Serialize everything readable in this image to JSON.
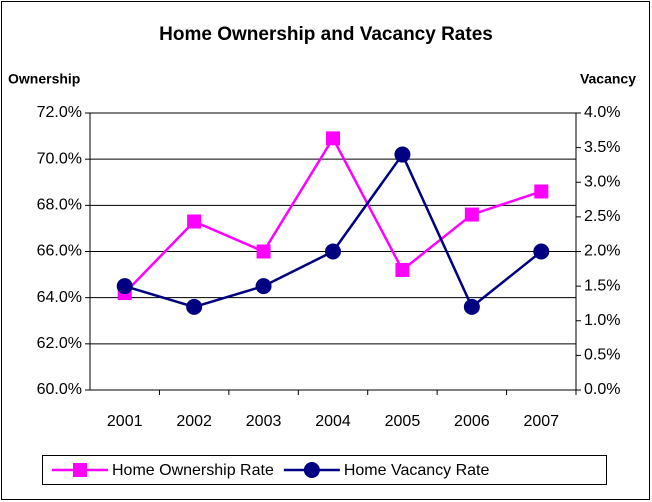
{
  "chart_data": {
    "type": "line",
    "title": "Home Ownership and Vacancy Rates",
    "ylabel": "Ownership",
    "y2label": "Vacancy",
    "categories": [
      "2001",
      "2002",
      "2003",
      "2004",
      "2005",
      "2006",
      "2007"
    ],
    "series": [
      {
        "name": "Home Ownership Rate",
        "color": "#ff00ff",
        "marker": "square",
        "values": [
          64.2,
          67.3,
          66.0,
          70.9,
          65.2,
          67.6,
          68.6
        ]
      },
      {
        "name": "Home Vacancy Rate",
        "color": "#000080",
        "marker": "circle",
        "axis": "y2",
        "values": [
          1.5,
          1.2,
          1.5,
          2.0,
          3.4,
          1.2,
          2.0
        ]
      }
    ],
    "ylim": [
      60,
      72
    ],
    "yticks": [
      {
        "value": 60,
        "label": "60.0%"
      },
      {
        "value": 62,
        "label": "62.0%"
      },
      {
        "value": 64,
        "label": "64.0%"
      },
      {
        "value": 66,
        "label": "66.0%"
      },
      {
        "value": 68,
        "label": "68.0%"
      },
      {
        "value": 70,
        "label": "70.0%"
      },
      {
        "value": 72,
        "label": "72.0%"
      }
    ],
    "y2lim": [
      0,
      4
    ],
    "y2ticks": [
      {
        "value": 0,
        "label": "0.0%"
      },
      {
        "value": 0.5,
        "label": "0.5%"
      },
      {
        "value": 1,
        "label": "1.0%"
      },
      {
        "value": 1.5,
        "label": "1.5%"
      },
      {
        "value": 2,
        "label": "2.0%"
      },
      {
        "value": 2.5,
        "label": "2.5%"
      },
      {
        "value": 3,
        "label": "3.0%"
      },
      {
        "value": 3.5,
        "label": "3.5%"
      },
      {
        "value": 4,
        "label": "4.0%"
      }
    ],
    "grid": true,
    "legend": "bottom"
  }
}
